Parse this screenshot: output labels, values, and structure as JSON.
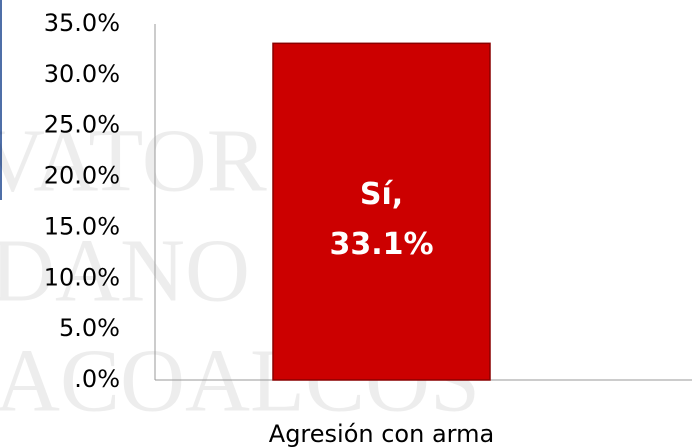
{
  "chart_data": {
    "type": "bar",
    "categories": [
      "Agresión con arma"
    ],
    "series": [
      {
        "name": "Sí",
        "color": "#cc0000",
        "values": [
          33.1
        ],
        "value_labels": [
          "Sí, 33.1%"
        ]
      }
    ],
    "ylim": [
      0,
      35
    ],
    "yticks": [
      {
        "value": 0,
        "label": ".0%"
      },
      {
        "value": 5,
        "label": "5.0%"
      },
      {
        "value": 10,
        "label": "10.0%"
      },
      {
        "value": 15,
        "label": "15.0%"
      },
      {
        "value": 20,
        "label": "20.0%"
      },
      {
        "value": 25,
        "label": "25.0%"
      },
      {
        "value": 30,
        "label": "30.0%"
      },
      {
        "value": 35,
        "label": "35.0%"
      }
    ],
    "grid": false,
    "watermark": [
      "VATOR",
      "DANO",
      "ACOALCOS"
    ]
  }
}
